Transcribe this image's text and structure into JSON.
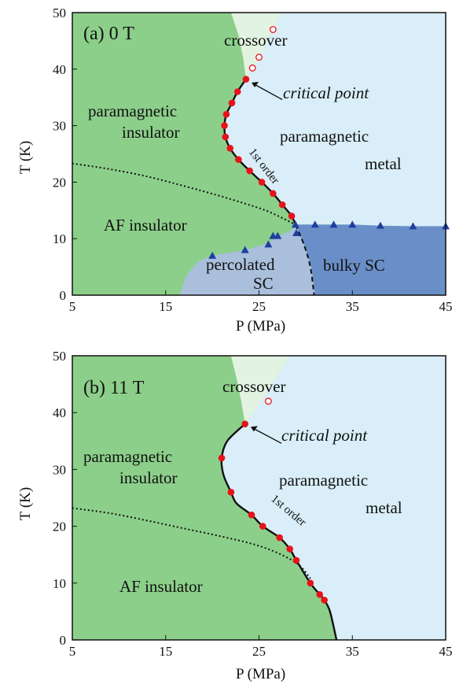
{
  "colors": {
    "insulator_green": "#8ccf8a",
    "metal_blue": "#d9eef8",
    "bulky_sc": "#6a8fc8",
    "percolated_sc": "#a9bfdb",
    "marker_red": "#e8121a",
    "triangle": "#1f3f9f",
    "axis": "#111111"
  },
  "chart_data": [
    {
      "type": "scatter",
      "title": "(a) 0 T",
      "xlabel": "P (MPa)",
      "ylabel": "T (K)",
      "xlim": [
        5,
        45
      ],
      "ylim": [
        0,
        50
      ],
      "x_ticks": [
        "5",
        "15",
        "25",
        "35",
        "45"
      ],
      "y_ticks": [
        "0",
        "10",
        "20",
        "30",
        "40",
        "50"
      ],
      "labels": {
        "crossover": "crossover",
        "critical_point": "critical point",
        "para_insulator_1": "paramagnetic",
        "para_insulator_2": "insulator",
        "para_metal_1": "paramagnetic",
        "para_metal_2": "metal",
        "first_order": "1st order",
        "af_insulator": "AF insulator",
        "percolated_1": "percolated",
        "percolated_2": "SC",
        "bulky_sc": "bulky SC"
      },
      "first_order_points": [
        [
          23.6,
          38.2
        ],
        [
          22.7,
          36
        ],
        [
          22.1,
          34
        ],
        [
          21.5,
          32
        ],
        [
          21.3,
          30
        ],
        [
          21.4,
          28
        ],
        [
          21.9,
          26
        ],
        [
          22.8,
          24
        ],
        [
          24.0,
          22
        ],
        [
          25.3,
          20
        ],
        [
          26.5,
          18
        ],
        [
          27.5,
          16
        ],
        [
          28.5,
          14
        ]
      ],
      "crossover_points": [
        [
          24.3,
          40.2
        ],
        [
          25.0,
          42.1
        ],
        [
          26.5,
          47.0
        ]
      ],
      "sc_points": [
        [
          20.0,
          7.0
        ],
        [
          23.5,
          8.0
        ],
        [
          26.0,
          9.0
        ],
        [
          26.5,
          10.5
        ],
        [
          27.0,
          10.5
        ],
        [
          29.0,
          11.0
        ],
        [
          28.9,
          12.5
        ],
        [
          31.0,
          12.5
        ],
        [
          33.0,
          12.5
        ],
        [
          35.0,
          12.5
        ],
        [
          38.0,
          12.3
        ],
        [
          41.5,
          12.2
        ],
        [
          45.0,
          12.2
        ]
      ]
    },
    {
      "type": "scatter",
      "title": "(b) 11 T",
      "xlabel": "P (MPa)",
      "ylabel": "T (K)",
      "xlim": [
        5,
        45
      ],
      "ylim": [
        0,
        50
      ],
      "x_ticks": [
        "5",
        "15",
        "25",
        "35",
        "45"
      ],
      "y_ticks": [
        "0",
        "10",
        "20",
        "30",
        "40",
        "50"
      ],
      "labels": {
        "crossover": "crossover",
        "critical_point": "critical point",
        "para_insulator_1": "paramagnetic",
        "para_insulator_2": "insulator",
        "para_metal_1": "paramagnetic",
        "para_metal_2": "metal",
        "first_order": "1st order",
        "af_insulator": "AF insulator"
      },
      "first_order_points": [
        [
          23.5,
          38
        ],
        [
          21.0,
          32
        ],
        [
          22.0,
          26
        ],
        [
          24.2,
          22
        ],
        [
          25.4,
          20
        ],
        [
          27.2,
          18
        ],
        [
          28.3,
          16
        ],
        [
          29.0,
          14
        ],
        [
          30.5,
          10
        ],
        [
          31.5,
          8
        ],
        [
          32.0,
          7
        ]
      ],
      "crossover_points": [
        [
          26.0,
          42
        ]
      ]
    }
  ]
}
